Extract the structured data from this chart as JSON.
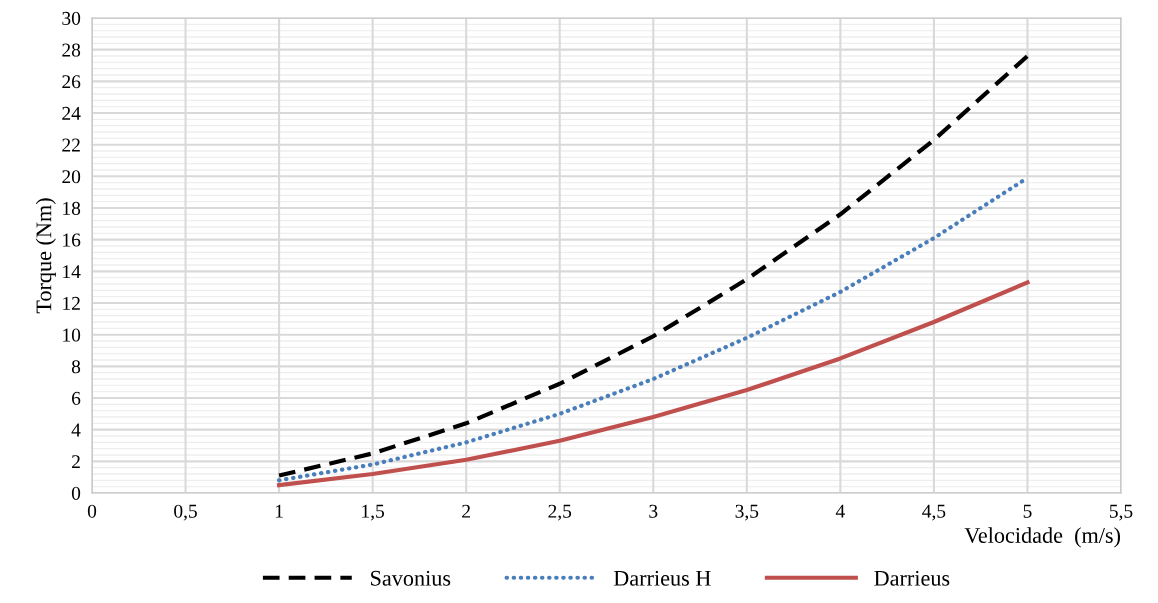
{
  "chart_data": {
    "type": "line",
    "xlabel": "Velocidade  (m/s)",
    "ylabel": "Torque (Nm)",
    "x": [
      1,
      1.5,
      2,
      2.5,
      3,
      3.5,
      4,
      4.5,
      5
    ],
    "series": [
      {
        "name": "Savonius",
        "color": "#000000",
        "line_style": "dashed",
        "values": [
          1.1,
          2.5,
          4.4,
          6.9,
          9.9,
          13.5,
          17.6,
          22.3,
          27.6
        ]
      },
      {
        "name": "Darrieus H",
        "color": "#4a7ebb",
        "line_style": "dotted",
        "values": [
          0.8,
          1.8,
          3.2,
          5.0,
          7.2,
          9.8,
          12.7,
          16.1,
          19.9
        ]
      },
      {
        "name": "Darrieus",
        "color": "#c0504d",
        "line_style": "solid",
        "values": [
          0.5,
          1.2,
          2.1,
          3.3,
          4.8,
          6.5,
          8.5,
          10.8,
          13.3
        ]
      }
    ],
    "xlim": [
      0,
      5.5
    ],
    "xticks": [
      0,
      {
        "value": 0.5,
        "label": "0,5"
      },
      1,
      {
        "value": 1.5,
        "label": "1,5"
      },
      2,
      {
        "value": 2.5,
        "label": "2,5"
      },
      3,
      {
        "value": 3.5,
        "label": "3,5"
      },
      4,
      {
        "value": 4.5,
        "label": "4,5"
      },
      5,
      {
        "value": 5.5,
        "label": "5,5"
      }
    ],
    "ylim": [
      0,
      30
    ],
    "yticks": [
      0,
      2,
      4,
      6,
      8,
      10,
      12,
      14,
      16,
      18,
      20,
      22,
      24,
      26,
      28,
      30
    ],
    "grid": true,
    "legend": "bottom",
    "marker": "none"
  }
}
